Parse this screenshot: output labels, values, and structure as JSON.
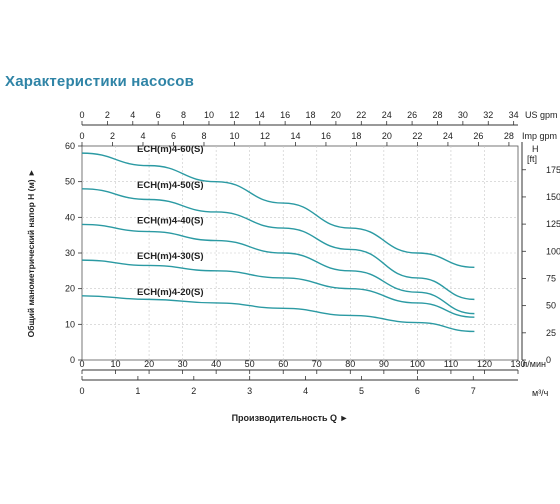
{
  "title": "Характеристики насосов",
  "chart_data": {
    "type": "line",
    "ylabel": "Общий манометрический напор H (м)",
    "xlabel": "Производительность Q",
    "y_left": {
      "ticks": [
        0,
        10,
        20,
        30,
        40,
        50,
        60
      ],
      "range": [
        0,
        60
      ]
    },
    "y_right": {
      "label_h": "H",
      "label_unit": "[ft]",
      "ticks": [
        0,
        25,
        50,
        75,
        100,
        125,
        150,
        175
      ]
    },
    "x_lmin": {
      "unit": "л/мин",
      "ticks": [
        0,
        10,
        20,
        30,
        40,
        50,
        60,
        70,
        80,
        90,
        100,
        110,
        120,
        130
      ],
      "range": [
        0,
        130
      ]
    },
    "x_m3h": {
      "unit": "м³/ч",
      "ticks": [
        0,
        1,
        2,
        3,
        4,
        5,
        6,
        7
      ]
    },
    "x_usgpm": {
      "unit": "US gpm",
      "ticks": [
        0,
        2,
        4,
        6,
        8,
        10,
        12,
        14,
        16,
        18,
        20,
        22,
        24,
        26,
        28,
        30,
        32,
        34
      ]
    },
    "x_impgpm": {
      "unit": "Imp gpm",
      "ticks": [
        0,
        2,
        4,
        6,
        8,
        10,
        12,
        14,
        16,
        18,
        20,
        22,
        24,
        26,
        28
      ]
    },
    "series": [
      {
        "name": "ECH(m)4-60(S)",
        "x": [
          0,
          20,
          40,
          60,
          80,
          100,
          117
        ],
        "y": [
          58,
          54.5,
          50,
          44,
          37,
          30,
          26
        ]
      },
      {
        "name": "ECH(m)4-50(S)",
        "x": [
          0,
          20,
          40,
          60,
          80,
          100,
          117
        ],
        "y": [
          48,
          45,
          41.5,
          37,
          31,
          23,
          17
        ]
      },
      {
        "name": "ECH(m)4-40(S)",
        "x": [
          0,
          20,
          40,
          60,
          80,
          100,
          117
        ],
        "y": [
          38,
          36,
          33.5,
          30,
          25,
          19,
          13
        ]
      },
      {
        "name": "ECH(m)4-30(S)",
        "x": [
          0,
          20,
          40,
          60,
          80,
          100,
          117
        ],
        "y": [
          28,
          26.5,
          25,
          23,
          20,
          16,
          12
        ]
      },
      {
        "name": "ECH(m)4-20(S)",
        "x": [
          0,
          20,
          40,
          60,
          80,
          100,
          117
        ],
        "y": [
          18,
          17,
          16,
          14.5,
          12.5,
          10.5,
          8
        ]
      }
    ],
    "series_color": "#2b9aa3",
    "title_color": "#2f84a6",
    "grid": true
  }
}
